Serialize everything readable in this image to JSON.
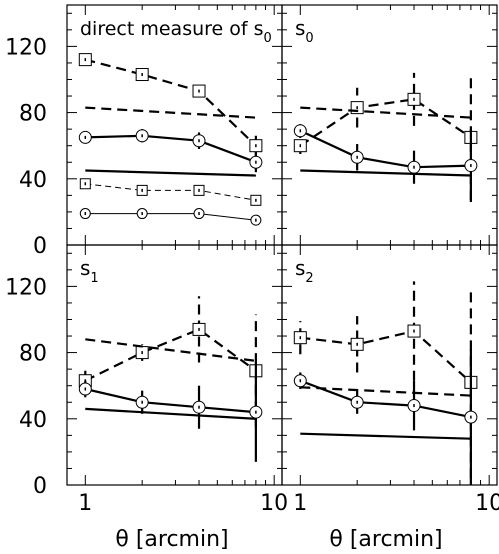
{
  "figure": {
    "x_axis_label": "θ [arcmin]",
    "y_tick_labels": [
      "0",
      "40",
      "80",
      "120"
    ],
    "x_tick_labels": [
      "1",
      "10"
    ]
  },
  "chart_data": [
    {
      "type": "line",
      "panel_label": "direct measure of s",
      "panel_label_sub": "0",
      "x_scale": "log",
      "xlim": [
        0.8,
        11
      ],
      "ylim": [
        0,
        145
      ],
      "series": [
        {
          "style": "dashed-thick",
          "marker": "square",
          "x": [
            1,
            2,
            4,
            8
          ],
          "y": [
            112,
            103,
            93,
            60
          ],
          "yerr": [
            2,
            1,
            3,
            6
          ]
        },
        {
          "style": "dashed-thick",
          "marker": "none",
          "x": [
            1,
            8
          ],
          "y": [
            83,
            77
          ]
        },
        {
          "style": "solid-thick",
          "marker": "circle",
          "x": [
            1,
            2,
            4,
            8
          ],
          "y": [
            65,
            66,
            63,
            50
          ],
          "yerr": [
            3,
            4,
            5,
            6
          ]
        },
        {
          "style": "solid-thick",
          "marker": "none",
          "x": [
            1,
            8
          ],
          "y": [
            45,
            42
          ]
        },
        {
          "style": "dashed-thin",
          "marker": "square",
          "x": [
            1,
            2,
            4,
            8
          ],
          "y": [
            37,
            33,
            33,
            27
          ],
          "yerr": [
            2,
            2,
            2,
            3
          ]
        },
        {
          "style": "solid-thin",
          "marker": "circle",
          "x": [
            1,
            2,
            4,
            8
          ],
          "y": [
            19,
            19,
            19,
            15
          ],
          "yerr": [
            1,
            1,
            1,
            2
          ]
        }
      ]
    },
    {
      "type": "line",
      "panel_label": "s",
      "panel_label_sub": "0",
      "x_scale": "log",
      "xlim": [
        0.8,
        11
      ],
      "ylim": [
        0,
        145
      ],
      "series": [
        {
          "style": "dashed-thick",
          "marker": "square",
          "x": [
            1,
            2,
            4,
            8
          ],
          "y": [
            60,
            83,
            88,
            65
          ],
          "yerr": [
            5,
            12,
            16,
            38
          ]
        },
        {
          "style": "dashed-thick",
          "marker": "none",
          "x": [
            1,
            8
          ],
          "y": [
            83,
            77
          ]
        },
        {
          "style": "solid-thick",
          "marker": "circle",
          "x": [
            1,
            2,
            4,
            8
          ],
          "y": [
            69,
            53,
            47,
            48
          ],
          "yerr": [
            4,
            8,
            10,
            22
          ]
        },
        {
          "style": "solid-thick",
          "marker": "none",
          "x": [
            1,
            8
          ],
          "y": [
            45,
            42
          ]
        }
      ]
    },
    {
      "type": "line",
      "panel_label": "s",
      "panel_label_sub": "1",
      "x_scale": "log",
      "xlim": [
        0.8,
        11
      ],
      "ylim": [
        0,
        145
      ],
      "series": [
        {
          "style": "dashed-thick",
          "marker": "square",
          "x": [
            1,
            2,
            4,
            8
          ],
          "y": [
            63,
            80,
            94,
            69
          ],
          "yerr": [
            6,
            5,
            20,
            34
          ]
        },
        {
          "style": "dashed-thick",
          "marker": "none",
          "x": [
            1,
            8
          ],
          "y": [
            88,
            75
          ]
        },
        {
          "style": "solid-thick",
          "marker": "circle",
          "x": [
            1,
            2,
            4,
            8
          ],
          "y": [
            58,
            50,
            47,
            44
          ],
          "yerr": [
            5,
            7,
            13,
            30
          ]
        },
        {
          "style": "solid-thick",
          "marker": "none",
          "x": [
            1,
            8
          ],
          "y": [
            46,
            40
          ]
        }
      ]
    },
    {
      "type": "line",
      "panel_label": "s",
      "panel_label_sub": "2",
      "x_scale": "log",
      "xlim": [
        0.8,
        11
      ],
      "ylim": [
        0,
        145
      ],
      "series": [
        {
          "style": "dashed-thick",
          "marker": "square",
          "x": [
            1,
            2,
            4,
            8
          ],
          "y": [
            89,
            85,
            93,
            62
          ],
          "yerr": [
            10,
            17,
            30,
            58
          ]
        },
        {
          "style": "dashed-thick",
          "marker": "none",
          "x": [
            1,
            8
          ],
          "y": [
            59,
            54
          ]
        },
        {
          "style": "solid-thick",
          "marker": "circle",
          "x": [
            1,
            2,
            4,
            8
          ],
          "y": [
            63,
            50,
            48,
            41
          ],
          "yerr": [
            5,
            7,
            15,
            41
          ]
        },
        {
          "style": "solid-thick",
          "marker": "none",
          "x": [
            1,
            8
          ],
          "y": [
            31,
            28
          ]
        }
      ]
    }
  ]
}
